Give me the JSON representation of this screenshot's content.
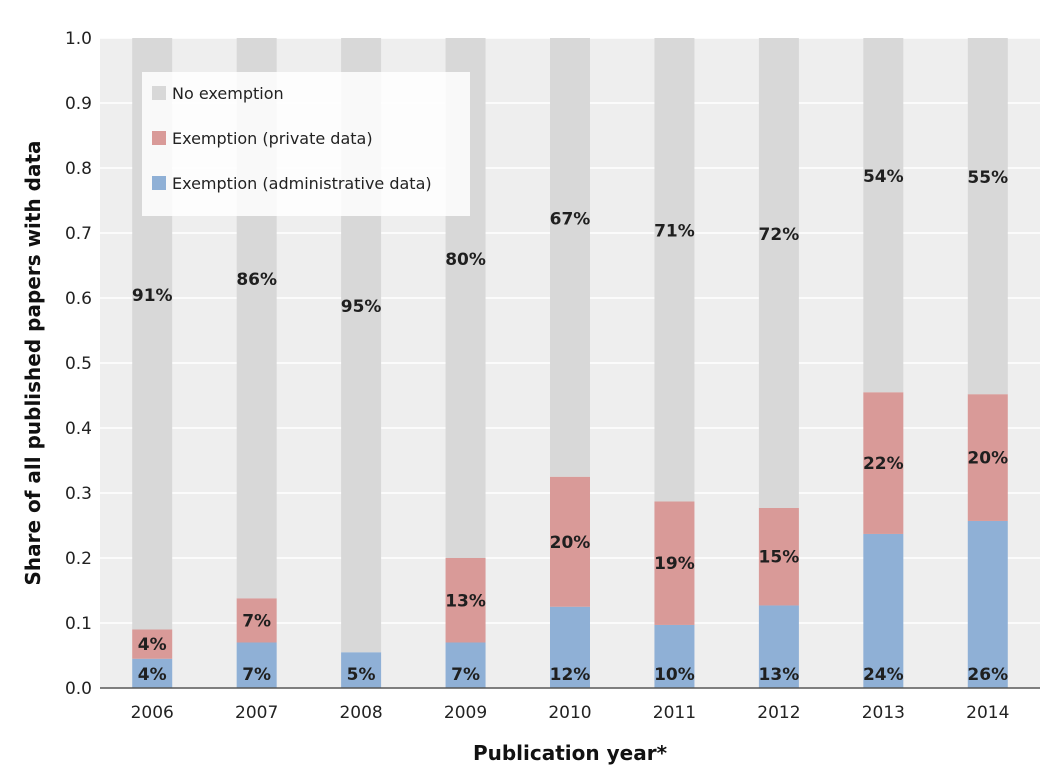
{
  "chart_data": {
    "type": "bar",
    "stacked": true,
    "categories": [
      "2006",
      "2007",
      "2008",
      "2009",
      "2010",
      "2011",
      "2012",
      "2013",
      "2014"
    ],
    "series": [
      {
        "name": "Exemption (administrative data)",
        "color": "#8fb0d6",
        "values": [
          0.045,
          0.07,
          0.055,
          0.07,
          0.125,
          0.097,
          0.127,
          0.237,
          0.257
        ],
        "labels": [
          "4%",
          "7%",
          "5%",
          "7%",
          "12%",
          "10%",
          "13%",
          "24%",
          "26%"
        ]
      },
      {
        "name": "Exemption (private data)",
        "color": "#d99a98",
        "values": [
          0.045,
          0.068,
          0.0,
          0.13,
          0.2,
          0.19,
          0.15,
          0.218,
          0.195
        ],
        "labels": [
          "4%",
          "7%",
          "",
          "13%",
          "20%",
          "19%",
          "15%",
          "22%",
          "20%"
        ]
      },
      {
        "name": "No exemption",
        "color": "#d8d8d8",
        "values": [
          0.91,
          0.862,
          0.945,
          0.8,
          0.675,
          0.713,
          0.723,
          0.545,
          0.548
        ],
        "labels": [
          "91%",
          "86%",
          "95%",
          "80%",
          "67%",
          "71%",
          "72%",
          "54%",
          "55%"
        ]
      }
    ],
    "legend_order": [
      "No exemption",
      "Exemption (private data)",
      "Exemption (administrative data)"
    ],
    "legend_position": "top-left",
    "xlabel": "Publication year*",
    "ylabel": "Share of all published papers with data",
    "ylim": [
      0,
      1.0
    ],
    "yticks": [
      "0.0",
      "0.1",
      "0.2",
      "0.3",
      "0.4",
      "0.5",
      "0.6",
      "0.7",
      "0.8",
      "0.9",
      "1.0"
    ],
    "grid": true
  }
}
